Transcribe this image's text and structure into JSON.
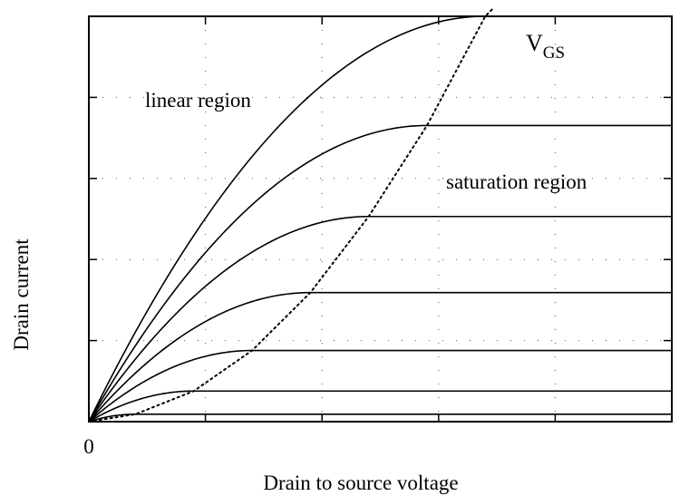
{
  "chart_data": {
    "type": "line",
    "title": "",
    "xlabel": "Drain to source voltage",
    "ylabel": "Drain current",
    "origin_label": "0",
    "x_tick_count": 5,
    "y_tick_count": 5,
    "xlim": [
      0,
      5
    ],
    "ylim": [
      0,
      4.9
    ],
    "grid": true,
    "grid_style": "dotted",
    "annotations": [
      {
        "id": "linear",
        "text": "linear region"
      },
      {
        "id": "saturation",
        "text": "saturation region"
      },
      {
        "id": "vgs",
        "text": "V",
        "subscript": "GS"
      }
    ],
    "curve_peaks": [
      {
        "x_sat": 3.4,
        "i_sat": 4.9
      },
      {
        "x_sat": 2.9,
        "i_sat": 3.58
      },
      {
        "x_sat": 2.4,
        "i_sat": 2.48
      },
      {
        "x_sat": 1.9,
        "i_sat": 1.56
      },
      {
        "x_sat": 1.4,
        "i_sat": 0.86
      },
      {
        "x_sat": 0.9,
        "i_sat": 0.37
      },
      {
        "x_sat": 0.4,
        "i_sat": 0.09
      }
    ],
    "saturation_boundary": "dotted",
    "colors": {
      "curves": "#000000",
      "grid": "#555555",
      "axes": "#000000"
    }
  }
}
